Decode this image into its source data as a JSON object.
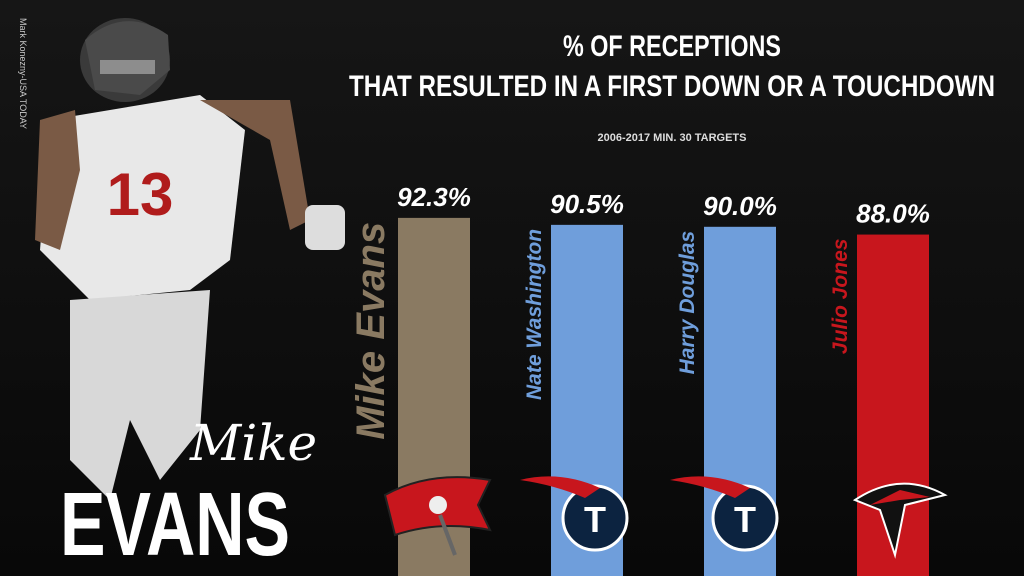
{
  "chart_data": {
    "type": "bar",
    "title": [
      "% OF RECEPTIONS",
      "THAT RESULTED IN A FIRST DOWN OR A TOUCHDOWN"
    ],
    "subtitle": "2006-2017 MIN. 30 TARGETS",
    "categories": [
      "Mike Evans",
      "Nate Washington",
      "Harry Douglas",
      "Julio Jones"
    ],
    "values": [
      92.3,
      90.5,
      90.0,
      88.0
    ],
    "value_labels": [
      "92.3%",
      "90.5%",
      "90.0%",
      "88.0%"
    ],
    "colors": [
      "#8a7a62",
      "#6f9edb",
      "#6f9edb",
      "#c8161d"
    ],
    "featured_first_name": "Mike",
    "featured_last_name": "EVANS",
    "photo_credit": "Mark Konezny-USA TODAY"
  }
}
